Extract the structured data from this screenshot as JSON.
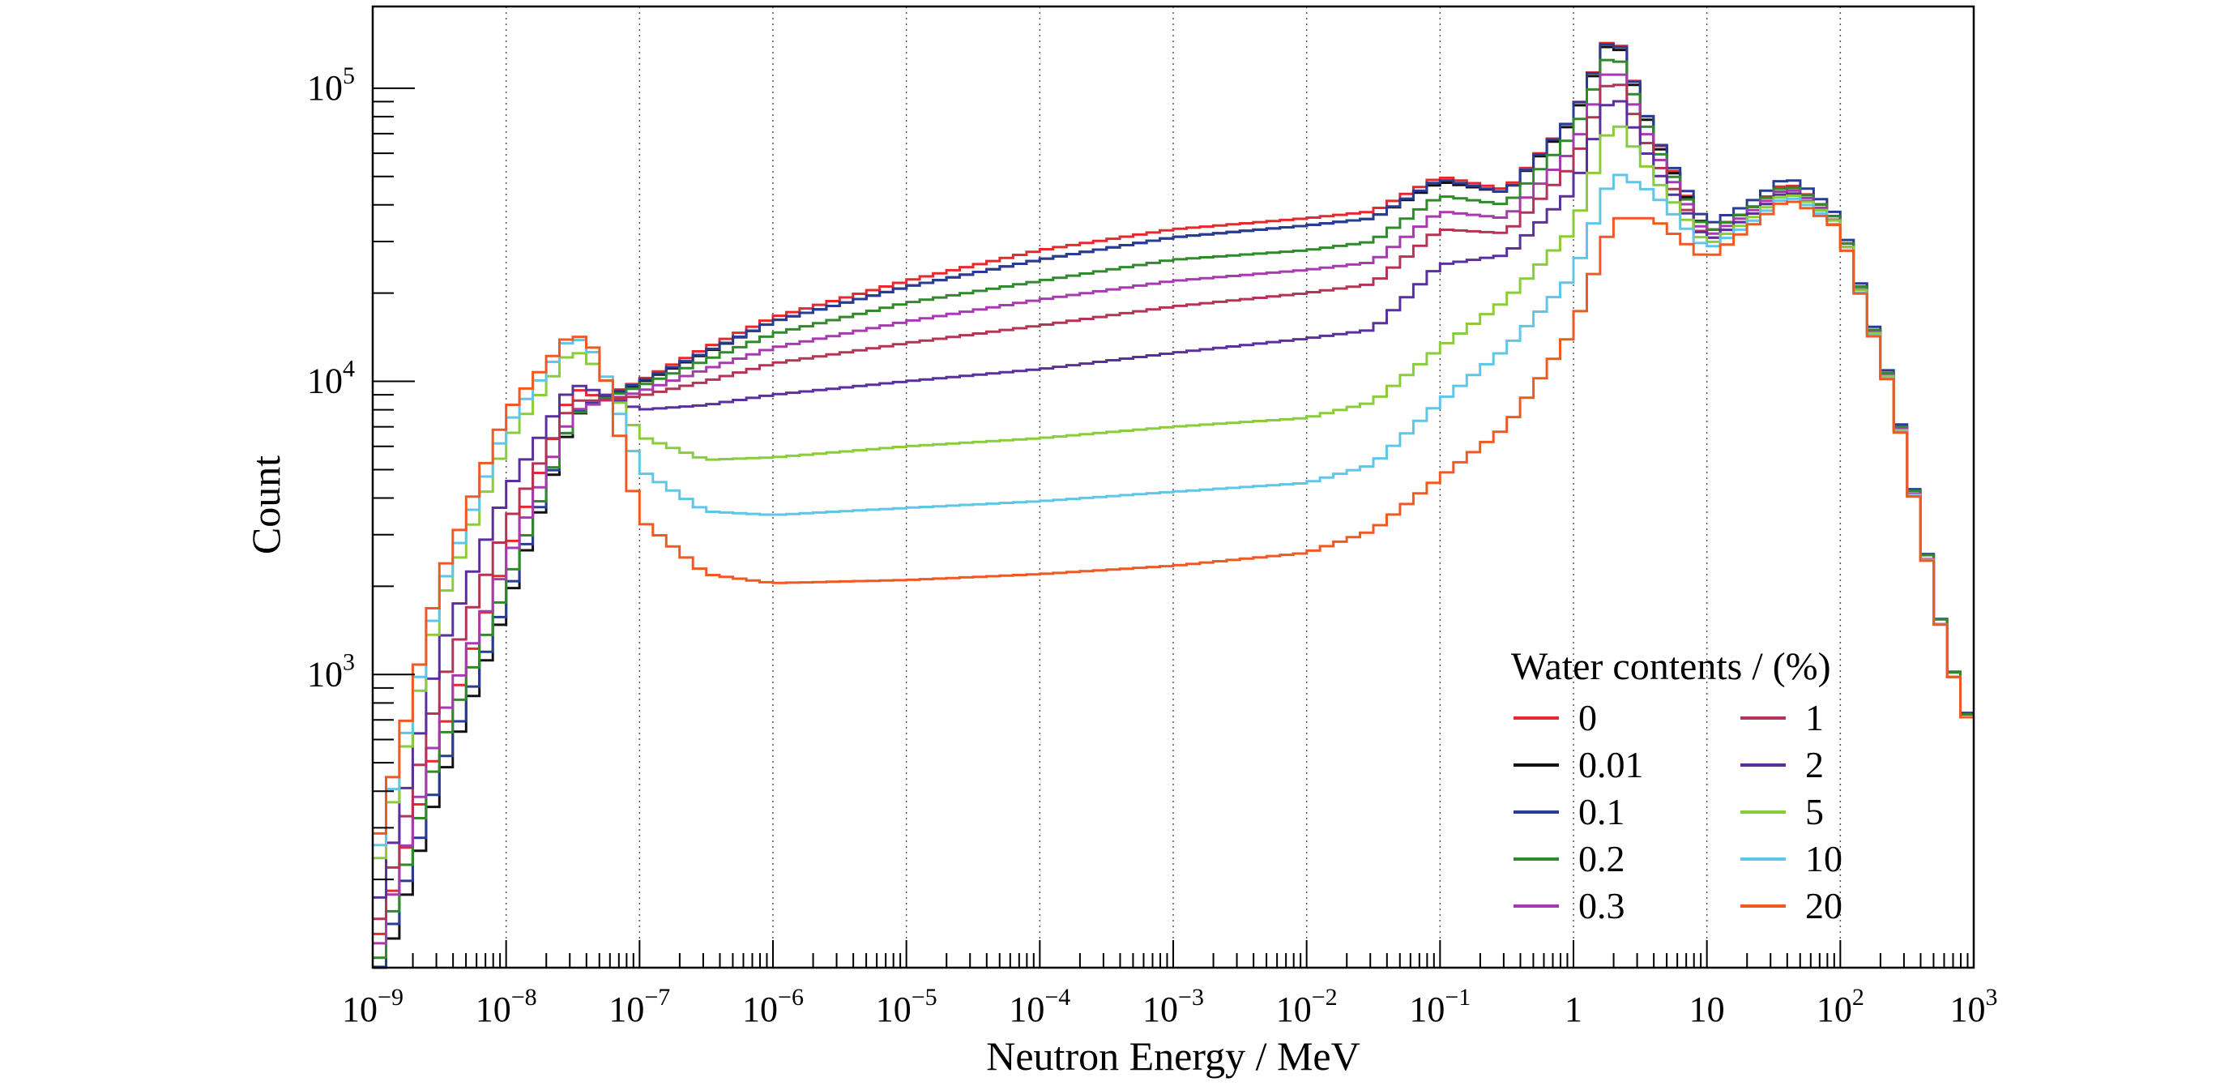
{
  "chart_data": {
    "type": "line",
    "step": true,
    "xlabel": "Neutron Energy / MeV",
    "ylabel": "Count",
    "xscale": "log",
    "yscale": "log",
    "xlim": [
      1e-09,
      1000
    ],
    "ylim": [
      100,
      190000
    ],
    "grid": "vertical dotted at decades",
    "x_ticks": [
      {
        "base": "10",
        "exp": "−9"
      },
      {
        "base": "10",
        "exp": "−8"
      },
      {
        "base": "10",
        "exp": "−7"
      },
      {
        "base": "10",
        "exp": "−6"
      },
      {
        "base": "10",
        "exp": "−5"
      },
      {
        "base": "10",
        "exp": "−4"
      },
      {
        "base": "10",
        "exp": "−3"
      },
      {
        "base": "10",
        "exp": "−2"
      },
      {
        "base": "10",
        "exp": "−1"
      },
      {
        "base": "1",
        "exp": ""
      },
      {
        "base": "10",
        "exp": ""
      },
      {
        "base": "10",
        "exp": "2"
      },
      {
        "base": "10",
        "exp": "3"
      }
    ],
    "y_ticks": [
      {
        "value": 1000,
        "base": "10",
        "exp": "3"
      },
      {
        "value": 10000,
        "base": "10",
        "exp": "4"
      },
      {
        "value": 100000,
        "base": "10",
        "exp": "5"
      }
    ],
    "legend": {
      "title": "Water contents / (%)",
      "placement": "bottom-right",
      "columns": 2
    },
    "anchors_log10E": [
      -9.0,
      -8.5,
      -8.0,
      -7.5,
      -7.3,
      -7.0,
      -6.5,
      -6.0,
      -5.0,
      -4.0,
      -3.0,
      -2.0,
      -1.5,
      -1.0,
      -0.5,
      0.0,
      0.3,
      0.6,
      1.0,
      1.3,
      1.6,
      1.8,
      2.0,
      2.4,
      2.8,
      3.0
    ],
    "series": [
      {
        "name": "0",
        "color": "#e8282d",
        "values": [
          110,
          600,
          2500,
          9500,
          8800,
          10000,
          13000,
          16500,
          22000,
          28000,
          33000,
          36000,
          38000,
          50000,
          45000,
          80000,
          160000,
          70000,
          32000,
          38000,
          48000,
          42000,
          35000,
          9000,
          1200,
          620
        ]
      },
      {
        "name": "0.01",
        "color": "#111111",
        "values": [
          75,
          420,
          1700,
          7500,
          8700,
          9800,
          12500,
          16000,
          21000,
          26000,
          31000,
          34000,
          36000,
          48000,
          44000,
          78000,
          155000,
          68000,
          32000,
          38000,
          47000,
          42000,
          35000,
          9000,
          1200,
          620
        ]
      },
      {
        "name": "0.1",
        "color": "#283c96",
        "values": [
          85,
          460,
          1800,
          7700,
          8700,
          9900,
          12600,
          16000,
          21000,
          26000,
          31000,
          34000,
          36000,
          49000,
          44000,
          80000,
          158000,
          70000,
          34000,
          40000,
          50000,
          44000,
          36000,
          9200,
          1200,
          630
        ]
      },
      {
        "name": "0.2",
        "color": "#2f8a2a",
        "values": [
          90,
          560,
          2000,
          7600,
          8600,
          9600,
          11800,
          14500,
          18500,
          22000,
          26000,
          28000,
          30000,
          43000,
          40000,
          70000,
          140000,
          65000,
          32000,
          38000,
          47000,
          42000,
          35000,
          9000,
          1200,
          620
        ]
      },
      {
        "name": "0.3",
        "color": "#a63bb0",
        "values": [
          100,
          680,
          2400,
          7900,
          8500,
          9200,
          11000,
          13000,
          16000,
          19000,
          22000,
          24000,
          25500,
          38000,
          36000,
          62000,
          125000,
          62000,
          31000,
          37000,
          46000,
          41000,
          34000,
          8900,
          1150,
          610
        ]
      },
      {
        "name": "1",
        "color": "#b33455",
        "values": [
          120,
          900,
          3200,
          8600,
          8600,
          8900,
          10000,
          11500,
          13500,
          15500,
          18000,
          20000,
          21500,
          33000,
          32000,
          55000,
          115000,
          58000,
          30000,
          36000,
          45000,
          40000,
          34000,
          8800,
          1150,
          610
        ]
      },
      {
        "name": "2",
        "color": "#5a2f9e",
        "values": [
          140,
          1200,
          4200,
          9800,
          9200,
          8000,
          8300,
          9000,
          10000,
          11000,
          12500,
          14000,
          15000,
          25000,
          27000,
          45000,
          100000,
          54000,
          30000,
          36000,
          45000,
          40000,
          34000,
          8800,
          1150,
          610
        ]
      },
      {
        "name": "5",
        "color": "#8acd3a",
        "values": [
          190,
          1700,
          6200,
          13000,
          11000,
          6500,
          5400,
          5500,
          6000,
          6400,
          7000,
          7500,
          8500,
          13000,
          19000,
          33000,
          80000,
          50000,
          29000,
          35000,
          44000,
          40000,
          34000,
          8800,
          1150,
          610
        ]
      },
      {
        "name": "10",
        "color": "#5fc6e8",
        "values": [
          210,
          1900,
          7000,
          14500,
          12000,
          5000,
          3600,
          3500,
          3700,
          3900,
          4200,
          4500,
          5200,
          8500,
          13000,
          23000,
          52000,
          44000,
          28000,
          34000,
          43000,
          39000,
          33000,
          8700,
          1150,
          610
        ]
      },
      {
        "name": "20",
        "color": "#f05a22",
        "values": [
          230,
          2100,
          7800,
          14800,
          12500,
          3400,
          2200,
          2050,
          2100,
          2200,
          2350,
          2600,
          3100,
          4700,
          7000,
          15000,
          36000,
          36000,
          26000,
          33000,
          42000,
          38000,
          33000,
          8600,
          1150,
          610
        ]
      }
    ]
  }
}
